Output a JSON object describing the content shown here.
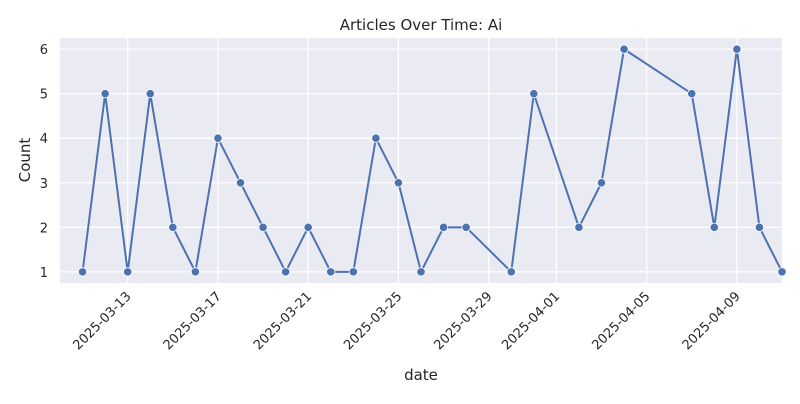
{
  "chart_data": {
    "type": "line",
    "title": "Articles Over Time: Ai",
    "xlabel": "date",
    "ylabel": "Count",
    "x_tick_labels": [
      "2025-03-13",
      "2025-03-17",
      "2025-03-21",
      "2025-03-25",
      "2025-03-29",
      "2025-04-01",
      "2025-04-05",
      "2025-04-09"
    ],
    "y_ticks": [
      1,
      2,
      3,
      4,
      5,
      6
    ],
    "xlim": [
      "2025-03-10",
      "2025-04-11"
    ],
    "ylim": [
      0.75,
      6.25
    ],
    "grid": true,
    "background": "#eaeaf2",
    "line_color": "#4c72b0",
    "series": [
      {
        "x": [
          "2025-03-11",
          "2025-03-12",
          "2025-03-13",
          "2025-03-14",
          "2025-03-15",
          "2025-03-16",
          "2025-03-17",
          "2025-03-18",
          "2025-03-19",
          "2025-03-20",
          "2025-03-21",
          "2025-03-22",
          "2025-03-23",
          "2025-03-24",
          "2025-03-25",
          "2025-03-26",
          "2025-03-27",
          "2025-03-28",
          "2025-03-30",
          "2025-03-31",
          "2025-04-02",
          "2025-04-03",
          "2025-04-04",
          "2025-04-07",
          "2025-04-08",
          "2025-04-09",
          "2025-04-10",
          "2025-04-11"
        ],
        "y": [
          1,
          5,
          1,
          5,
          2,
          1,
          4,
          3,
          2,
          1,
          2,
          1,
          1,
          4,
          3,
          1,
          2,
          2,
          1,
          5,
          2,
          3,
          6,
          5,
          2,
          6,
          2,
          1
        ]
      }
    ]
  }
}
